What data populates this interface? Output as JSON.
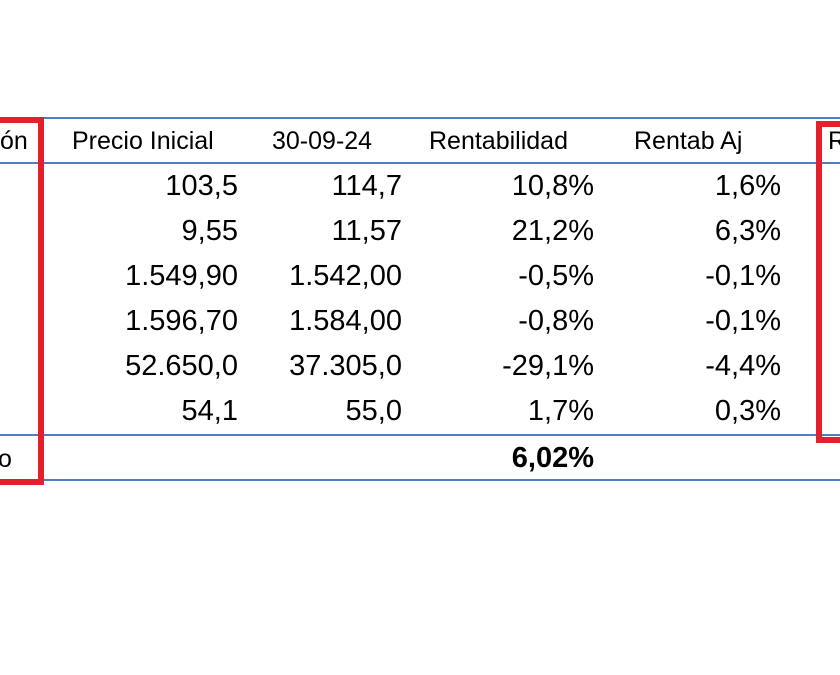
{
  "table": {
    "headers": {
      "col_left_partial": "ón",
      "precio_inicial": "Precio Inicial",
      "fecha": "30-09-24",
      "rentabilidad": "Rentabilidad",
      "rentab_aj": "Rentab Aj",
      "col_right_partial": "R"
    },
    "rows": [
      {
        "precio_inicial": "103,5",
        "fecha": "114,7",
        "rentabilidad": "10,8%",
        "rentab_aj": "1,6%"
      },
      {
        "precio_inicial": "9,55",
        "fecha": "11,57",
        "rentabilidad": "21,2%",
        "rentab_aj": "6,3%"
      },
      {
        "precio_inicial": "1.549,90",
        "fecha": "1.542,00",
        "rentabilidad": "-0,5%",
        "rentab_aj": "-0,1%"
      },
      {
        "precio_inicial": "1.596,70",
        "fecha": "1.584,00",
        "rentabilidad": "-0,8%",
        "rentab_aj": "-0,1%"
      },
      {
        "precio_inicial": "52.650,0",
        "fecha": "37.305,0",
        "rentabilidad": "-29,1%",
        "rentab_aj": "-4,4%"
      },
      {
        "precio_inicial": "54,1",
        "fecha": "55,0",
        "rentabilidad": "1,7%",
        "rentab_aj": "0,3%"
      }
    ],
    "footer": {
      "label_partial": "o",
      "total_rentabilidad": "6,02%"
    }
  },
  "colors": {
    "grid_line": "#4f7fbf",
    "highlight_box": "#e3202b"
  }
}
